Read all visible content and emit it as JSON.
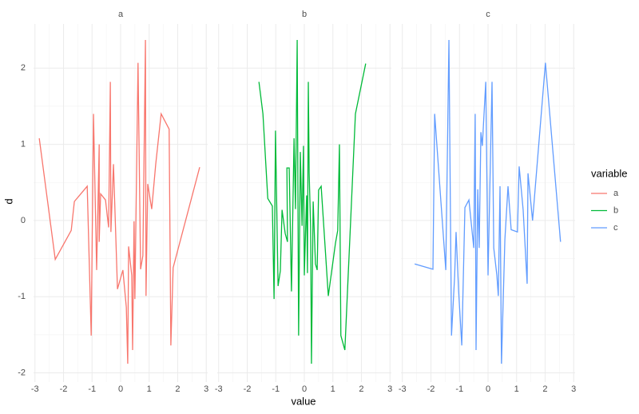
{
  "xlabel": "value",
  "ylabel": "d",
  "legend": {
    "title": "variable"
  },
  "chart_data": [
    {
      "type": "line",
      "title": "a",
      "grid": true,
      "minor_grid": true,
      "xlim": [
        -3.05,
        3.05
      ],
      "xticks": [
        -3,
        -2,
        -1,
        0,
        1,
        2,
        3
      ],
      "ylim": [
        -2.12,
        2.58
      ],
      "yticks": [
        -2,
        -1,
        0,
        1,
        2
      ],
      "x": [
        -2.85,
        -2.29,
        -1.73,
        -1.62,
        -1.17,
        -1.03,
        -0.95,
        -0.84,
        -0.75,
        -0.75,
        -0.7,
        -0.53,
        -0.42,
        -0.36,
        -0.34,
        -0.25,
        -0.11,
        0.08,
        0.2,
        0.25,
        0.28,
        0.39,
        0.42,
        0.47,
        0.5,
        0.61,
        0.7,
        0.78,
        0.87,
        0.89,
        0.95,
        1.09,
        1.23,
        1.42,
        1.7,
        1.76,
        1.84,
        2.77
      ],
      "series": [
        {
          "name": "a",
          "color": "#F8766D",
          "values": [
            1.08,
            -0.51,
            -0.13,
            0.25,
            0.45,
            -1.51,
            1.4,
            -0.65,
            1.0,
            -0.28,
            0.35,
            0.27,
            -0.09,
            1.82,
            -0.15,
            0.74,
            -0.9,
            -0.65,
            -1.14,
            -1.88,
            -0.34,
            -0.72,
            -1.7,
            -0.01,
            -1.03,
            2.07,
            -0.64,
            -0.46,
            2.37,
            -0.99,
            0.48,
            0.15,
            0.74,
            1.4,
            1.2,
            -1.64,
            -0.62,
            0.7
          ]
        }
      ]
    },
    {
      "type": "line",
      "title": "b",
      "grid": true,
      "minor_grid": true,
      "xlim": [
        -3.05,
        3.05
      ],
      "xticks": [
        -3,
        -2,
        -1,
        0,
        1,
        2,
        3
      ],
      "ylim": [
        -2.12,
        2.58
      ],
      "yticks": [
        -2,
        -1,
        0,
        1,
        2
      ],
      "x": [
        -1.59,
        -1.45,
        -1.28,
        -1.12,
        -1.06,
        -1.01,
        -0.92,
        -0.84,
        -0.78,
        -0.67,
        -0.59,
        -0.61,
        -0.53,
        -0.45,
        -0.36,
        -0.31,
        -0.25,
        -0.2,
        -0.14,
        -0.08,
        -0.03,
        0.0,
        0.08,
        0.11,
        0.14,
        0.17,
        0.22,
        0.25,
        0.31,
        0.39,
        0.45,
        0.5,
        0.59,
        0.84,
        1.09,
        1.17,
        1.23,
        1.28,
        1.42,
        1.79,
        2.15
      ],
      "series": [
        {
          "name": "b",
          "color": "#00BA38",
          "values": [
            1.82,
            1.4,
            0.29,
            0.19,
            -1.03,
            1.18,
            -0.86,
            -0.66,
            0.14,
            -0.17,
            -0.28,
            0.69,
            0.69,
            -0.93,
            1.08,
            0.15,
            2.37,
            -1.51,
            0.9,
            -0.07,
            0.98,
            -0.72,
            0.33,
            -0.69,
            1.82,
            0.62,
            -0.09,
            -1.88,
            0.25,
            -0.57,
            -0.65,
            0.4,
            0.45,
            -0.99,
            -0.3,
            -0.13,
            1.0,
            -1.51,
            -1.7,
            1.4,
            2.06
          ]
        }
      ]
    },
    {
      "type": "line",
      "title": "c",
      "grid": true,
      "minor_grid": true,
      "xlim": [
        -3.05,
        3.05
      ],
      "xticks": [
        -3,
        -2,
        -1,
        0,
        1,
        2,
        3
      ],
      "ylim": [
        -2.12,
        2.58
      ],
      "yticks": [
        -2,
        -1,
        0,
        1,
        2
      ],
      "x": [
        -2.57,
        -1.93,
        -1.87,
        -1.48,
        -1.37,
        -1.28,
        -1.17,
        -1.12,
        -1.03,
        -0.92,
        -0.81,
        -0.67,
        -0.5,
        -0.45,
        -0.42,
        -0.36,
        -0.31,
        -0.25,
        -0.2,
        -0.08,
        0.0,
        0.14,
        0.2,
        0.31,
        0.36,
        0.42,
        0.47,
        0.59,
        0.7,
        0.81,
        1.03,
        1.09,
        1.23,
        1.37,
        1.4,
        1.56,
        2.01,
        2.54
      ],
      "series": [
        {
          "name": "c",
          "color": "#619CFF",
          "values": [
            -0.57,
            -0.64,
            1.4,
            -0.65,
            2.37,
            -1.51,
            -0.73,
            -0.15,
            -0.93,
            -1.64,
            0.17,
            0.27,
            -0.36,
            1.4,
            -1.7,
            0.41,
            -0.36,
            1.16,
            0.98,
            1.82,
            -0.72,
            1.82,
            -0.36,
            -0.72,
            -0.99,
            0.45,
            -1.88,
            -0.25,
            0.45,
            -0.12,
            -0.15,
            0.71,
            0.14,
            -0.83,
            0.62,
            0.0,
            2.07,
            -0.28
          ]
        }
      ]
    }
  ]
}
